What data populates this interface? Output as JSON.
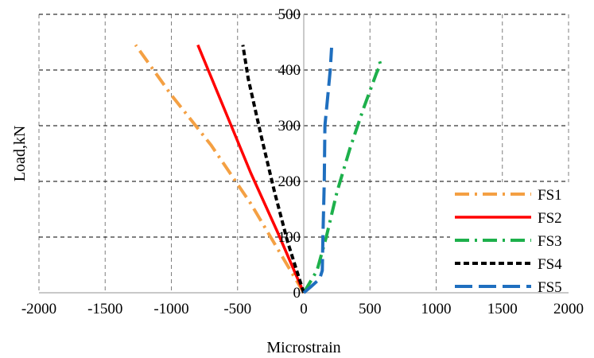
{
  "chart_data": {
    "type": "line",
    "xlabel": "Microstrain",
    "ylabel": "Load,kN",
    "xlim": [
      -2000,
      2000
    ],
    "ylim": [
      0,
      500
    ],
    "x_ticks": [
      -2000,
      -1500,
      -1000,
      -500,
      0,
      500,
      1000,
      1500,
      2000
    ],
    "y_ticks": [
      0,
      100,
      200,
      300,
      400,
      500
    ],
    "grid": true,
    "legend_position": "bottom-right",
    "series": [
      {
        "name": "FS1",
        "color": "#F4A043",
        "dash": "dash-dot",
        "x": [
          0,
          -150,
          -400,
          -700,
          -1000,
          -1270
        ],
        "y": [
          0,
          60,
          160,
          265,
          355,
          445
        ]
      },
      {
        "name": "FS2",
        "color": "#FF0000",
        "dash": "solid",
        "x": [
          0,
          -200,
          -400,
          -600,
          -800
        ],
        "y": [
          0,
          110,
          215,
          330,
          445
        ]
      },
      {
        "name": "FS3",
        "color": "#1DB04B",
        "dash": "dash-dot",
        "x": [
          0,
          100,
          170,
          250,
          350,
          450,
          550,
          580,
          560
        ],
        "y": [
          0,
          40,
          100,
          180,
          260,
          330,
          395,
          410,
          425
        ]
      },
      {
        "name": "FS4",
        "color": "#000000",
        "dash": "dash",
        "x": [
          0,
          -120,
          -220,
          -320,
          -420,
          -460
        ],
        "y": [
          0,
          90,
          180,
          280,
          385,
          445
        ]
      },
      {
        "name": "FS5",
        "color": "#1F6FBF",
        "dash": "long-dash",
        "x": [
          0,
          50,
          120,
          140,
          145,
          155,
          160,
          180,
          200,
          210
        ],
        "y": [
          0,
          10,
          25,
          40,
          100,
          200,
          300,
          350,
          400,
          440
        ]
      }
    ]
  }
}
